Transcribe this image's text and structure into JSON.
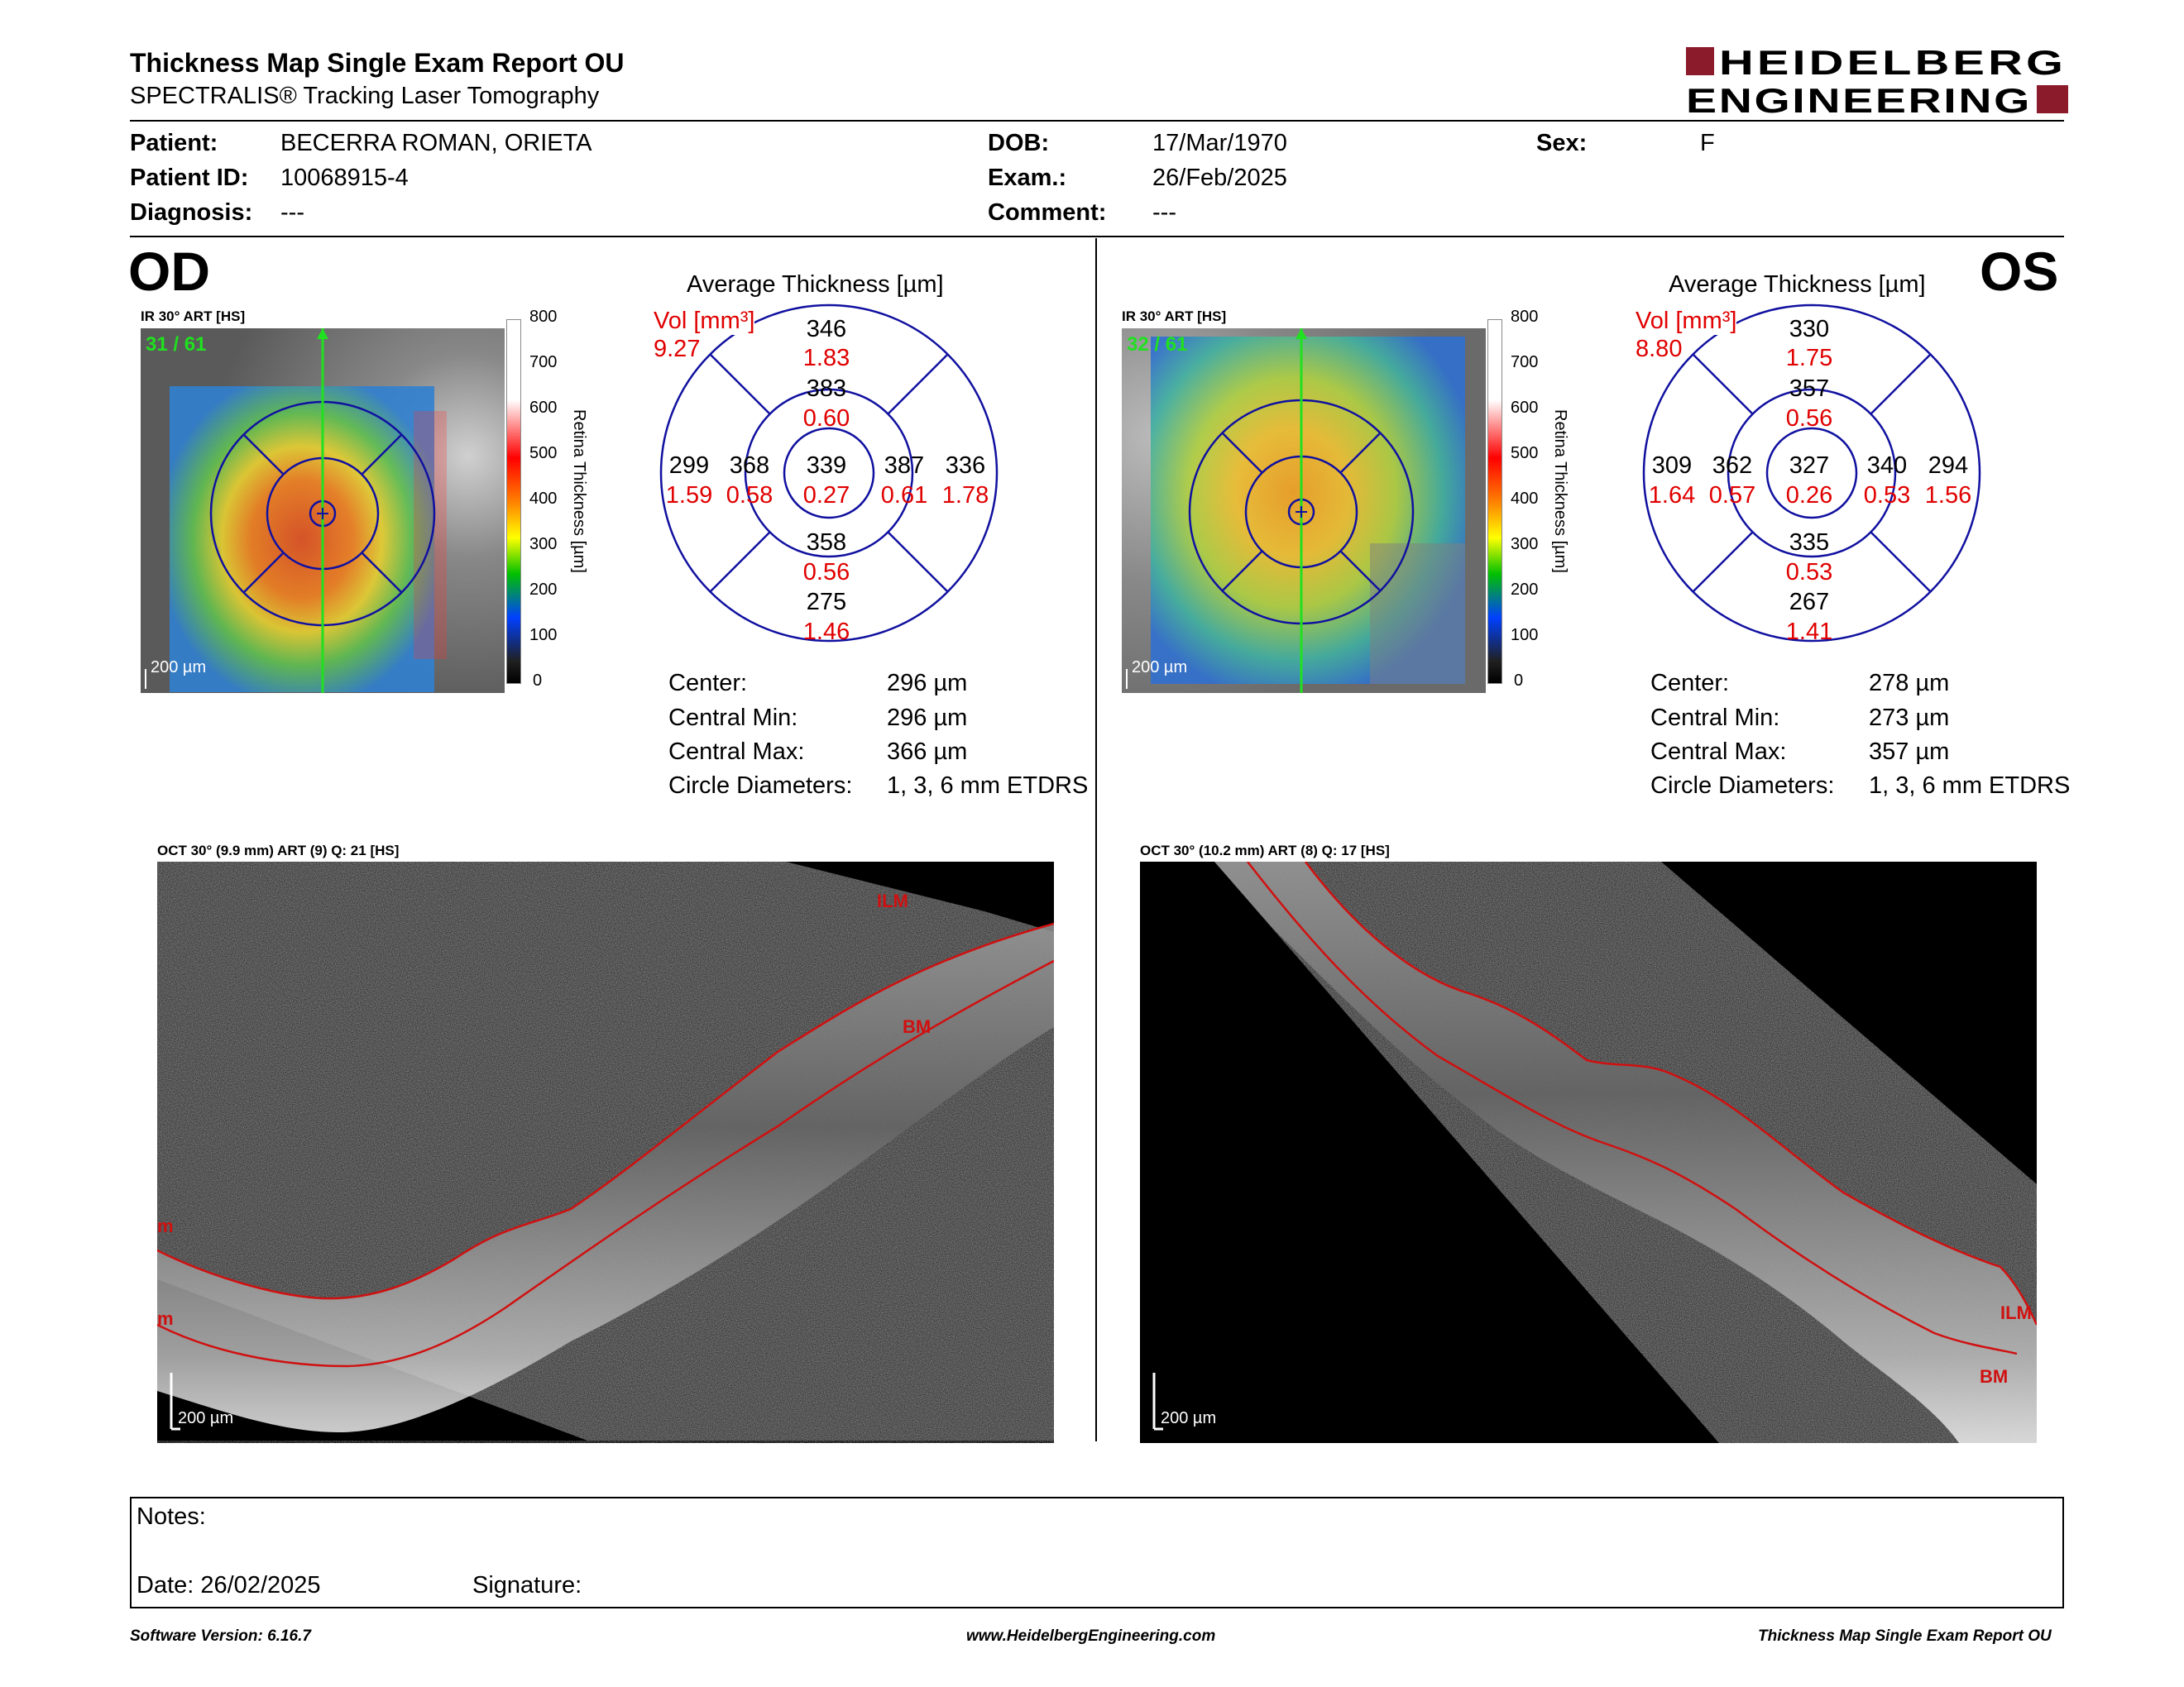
{
  "report": {
    "title": "Thickness Map Single Exam Report OU",
    "subtitle": "SPECTRALIS® Tracking Laser Tomography",
    "logo_line1": "HEIDELBERG",
    "logo_line2": "ENGINEERING",
    "brand_color": "#8b1a2b"
  },
  "patient": {
    "patient_label": "Patient:",
    "patient_value": "BECERRA ROMAN, ORIETA",
    "id_label": "Patient ID:",
    "id_value": "10068915-4",
    "diagnosis_label": "Diagnosis:",
    "diagnosis_value": "---",
    "dob_label": "DOB:",
    "dob_value": "17/Mar/1970",
    "exam_label": "Exam.:",
    "exam_value": "26/Feb/2025",
    "comment_label": "Comment:",
    "comment_value": "---",
    "sex_label": "Sex:",
    "sex_value": "F"
  },
  "scale": {
    "ticks": [
      "800",
      "700",
      "600",
      "500",
      "400",
      "300",
      "200",
      "100",
      "0"
    ],
    "label": "Retina Thickness [µm]",
    "colors": [
      "#ffffff",
      "#ffffff",
      "#ff0000",
      "#ff8000",
      "#ffff00",
      "#00c000",
      "#0040ff",
      "#202020",
      "#000000"
    ]
  },
  "od": {
    "eye": "OD",
    "ir_title": "IR 30° ART [HS]",
    "frame": "31 / 61",
    "scale_bar": "200 µm",
    "avg_title": "Average Thickness [µm]",
    "vol_label": "Vol [mm³]",
    "vol_value": "9.27",
    "sectors": {
      "outer_superior": {
        "t": "346",
        "v": "1.83"
      },
      "inner_superior": {
        "t": "383",
        "v": "0.60"
      },
      "outer_temporal": {
        "t": "299",
        "v": "1.59"
      },
      "inner_temporal": {
        "t": "368",
        "v": "0.58"
      },
      "center": {
        "t": "339",
        "v": "0.27"
      },
      "inner_nasal": {
        "t": "387",
        "v": "0.61"
      },
      "outer_nasal": {
        "t": "336",
        "v": "1.78"
      },
      "inner_inferior": {
        "t": "358",
        "v": "0.56"
      },
      "outer_inferior": {
        "t": "275",
        "v": "1.46"
      }
    },
    "stats": [
      {
        "label": "Center:",
        "value": "296 µm"
      },
      {
        "label": "Central Min:",
        "value": "296 µm"
      },
      {
        "label": "Central Max:",
        "value": "366 µm"
      },
      {
        "label": "Circle Diameters:",
        "value": "1, 3, 6 mm ETDRS"
      }
    ],
    "oct_title": "OCT 30° (9.9 mm) ART (9) Q: 21 [HS]",
    "oct_scale": "200 µm",
    "ilm": "ILM",
    "bm": "BM",
    "edge_l1": "m",
    "edge_l2": "m"
  },
  "os": {
    "eye": "OS",
    "ir_title": "IR 30° ART [HS]",
    "frame": "32 / 61",
    "scale_bar": "200 µm",
    "avg_title": "Average Thickness [µm]",
    "vol_label": "Vol [mm³]",
    "vol_value": "8.80",
    "sectors": {
      "outer_superior": {
        "t": "330",
        "v": "1.75"
      },
      "inner_superior": {
        "t": "357",
        "v": "0.56"
      },
      "outer_temporal": {
        "t": "309",
        "v": "1.64"
      },
      "inner_temporal": {
        "t": "362",
        "v": "0.57"
      },
      "center": {
        "t": "327",
        "v": "0.26"
      },
      "inner_nasal": {
        "t": "340",
        "v": "0.53"
      },
      "outer_nasal": {
        "t": "294",
        "v": "1.56"
      },
      "inner_inferior": {
        "t": "335",
        "v": "0.53"
      },
      "outer_inferior": {
        "t": "267",
        "v": "1.41"
      }
    },
    "stats": [
      {
        "label": "Center:",
        "value": "278 µm"
      },
      {
        "label": "Central Min:",
        "value": "273 µm"
      },
      {
        "label": "Central Max:",
        "value": "357 µm"
      },
      {
        "label": "Circle Diameters:",
        "value": "1, 3, 6 mm ETDRS"
      }
    ],
    "oct_title": "OCT 30° (10.2 mm) ART (8) Q: 17 [HS]",
    "oct_scale": "200 µm",
    "ilm": "ILM",
    "bm": "BM"
  },
  "notes": {
    "notes_label": "Notes:",
    "date_label": "Date: 26/02/2025",
    "signature_label": "Signature:"
  },
  "footer": {
    "software": "Software Version: 6.16.7",
    "website": "www.HeidelbergEngineering.com",
    "report_name": "Thickness Map Single Exam Report OU"
  }
}
